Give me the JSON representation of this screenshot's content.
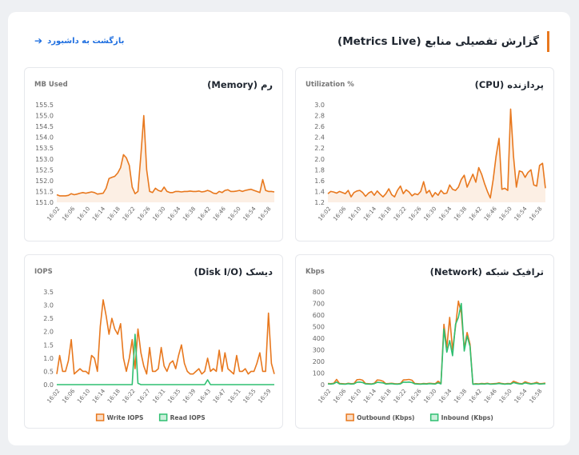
{
  "header": {
    "title": "گزارش تفصیلی منابع (Metrics Live)",
    "back_link": "بازگشت به داشبورد"
  },
  "cards": [
    {
      "id": "cpu",
      "title": "پردازنده (CPU)",
      "unit": "Utilization %",
      "chart_data": {
        "type": "area",
        "title": "پردازنده (CPU)",
        "ylabel": "Utilization %",
        "ylim": [
          1.2,
          3.0
        ],
        "yticks": [
          1.2,
          1.4,
          1.6,
          1.8,
          2.0,
          2.2,
          2.4,
          2.6,
          2.8,
          3.0
        ],
        "ytick_decimals": 1,
        "xticks": [
          "16:02",
          "16:06",
          "16:10",
          "16:14",
          "16:18",
          "16:22",
          "16:26",
          "16:30",
          "16:34",
          "16:38",
          "16:42",
          "16:46",
          "16:50",
          "16:54",
          "16:58"
        ],
        "x_count": 76,
        "fill": true,
        "legend": "none",
        "grid": false,
        "series": [
          {
            "color": "#e8781e",
            "values": [
              1.36,
              1.4,
              1.39,
              1.37,
              1.4,
              1.38,
              1.36,
              1.42,
              1.3,
              1.38,
              1.41,
              1.42,
              1.38,
              1.31,
              1.37,
              1.4,
              1.33,
              1.41,
              1.35,
              1.3,
              1.36,
              1.45,
              1.34,
              1.3,
              1.42,
              1.5,
              1.36,
              1.43,
              1.39,
              1.32,
              1.36,
              1.34,
              1.4,
              1.58,
              1.37,
              1.42,
              1.3,
              1.38,
              1.33,
              1.42,
              1.36,
              1.37,
              1.52,
              1.44,
              1.42,
              1.48,
              1.62,
              1.7,
              1.48,
              1.6,
              1.72,
              1.57,
              1.84,
              1.72,
              1.55,
              1.4,
              1.28,
              1.62,
              2.05,
              2.38,
              1.44,
              1.46,
              1.42,
              2.92,
              2.05,
              1.48,
              1.78,
              1.76,
              1.66,
              1.75,
              1.8,
              1.52,
              1.5,
              1.88,
              1.92,
              1.46
            ]
          }
        ]
      }
    },
    {
      "id": "memory",
      "title": "رم (Memory)",
      "unit": "MB Used",
      "chart_data": {
        "type": "area",
        "title": "رم (Memory)",
        "ylabel": "MB Used",
        "ylim": [
          151.0,
          155.5
        ],
        "yticks": [
          151.0,
          151.5,
          152.0,
          152.5,
          153.0,
          153.5,
          154.0,
          154.5,
          155.0,
          155.5
        ],
        "ytick_decimals": 1,
        "xticks": [
          "16:02",
          "16:06",
          "16:10",
          "16:14",
          "16:18",
          "16:22",
          "16:26",
          "16:30",
          "16:34",
          "16:38",
          "16:42",
          "16:46",
          "16:50",
          "16:54",
          "16:58"
        ],
        "x_count": 76,
        "fill": true,
        "legend": "none",
        "grid": false,
        "series": [
          {
            "color": "#e8781e",
            "values": [
              151.35,
              151.3,
              151.3,
              151.3,
              151.32,
              151.4,
              151.35,
              151.38,
              151.42,
              151.45,
              151.42,
              151.45,
              151.48,
              151.45,
              151.38,
              151.4,
              151.42,
              151.65,
              152.1,
              152.15,
              152.2,
              152.35,
              152.6,
              153.2,
              153.05,
              152.7,
              151.7,
              151.4,
              151.5,
              153.2,
              155.0,
              152.5,
              151.5,
              151.45,
              151.65,
              151.55,
              151.5,
              151.7,
              151.5,
              151.45,
              151.45,
              151.5,
              151.5,
              151.48,
              151.5,
              151.5,
              151.52,
              151.5,
              151.5,
              151.52,
              151.48,
              151.5,
              151.55,
              151.5,
              151.42,
              151.4,
              151.5,
              151.45,
              151.55,
              151.58,
              151.5,
              151.5,
              151.52,
              151.55,
              151.5,
              151.55,
              151.58,
              151.6,
              151.55,
              151.5,
              151.45,
              152.05,
              151.55,
              151.5,
              151.5,
              151.48
            ]
          }
        ]
      }
    },
    {
      "id": "network",
      "title": "ترافیک شبکه (Network)",
      "unit": "Kbps",
      "chart_data": {
        "type": "line",
        "title": "ترافیک شبکه (Network)",
        "ylabel": "Kbps",
        "ylim": [
          0,
          800
        ],
        "yticks": [
          0,
          100,
          200,
          300,
          400,
          500,
          600,
          700,
          800
        ],
        "ytick_decimals": 0,
        "xticks": [
          "16:02",
          "16:06",
          "16:10",
          "16:14",
          "16:18",
          "16:22",
          "16:26",
          "16:30",
          "16:34",
          "16:38",
          "16:42",
          "16:46",
          "16:50",
          "16:54",
          "16:58"
        ],
        "x_count": 76,
        "fill": false,
        "legend": "bottom",
        "grid": false,
        "series": [
          {
            "name": "Outbound (Kbps)",
            "color": "#e8781e",
            "values": [
              10,
              8,
              12,
              45,
              10,
              8,
              6,
              12,
              8,
              10,
              42,
              45,
              38,
              10,
              8,
              6,
              12,
              40,
              38,
              30,
              8,
              10,
              12,
              8,
              6,
              10,
              40,
              42,
              45,
              38,
              10,
              8,
              6,
              10,
              8,
              12,
              10,
              8,
              30,
              10,
              520,
              320,
              580,
              300,
              500,
              720,
              620,
              310,
              450,
              350,
              5,
              8,
              6,
              10,
              8,
              12,
              6,
              8,
              10,
              15,
              10,
              6,
              10,
              8,
              30,
              20,
              10,
              8,
              25,
              15,
              8,
              12,
              20,
              8,
              10,
              14
            ]
          },
          {
            "name": "Inbound (Kbps)",
            "color": "#2fbf71",
            "values": [
              6,
              5,
              8,
              22,
              6,
              5,
              4,
              8,
              5,
              6,
              20,
              22,
              18,
              6,
              5,
              4,
              8,
              20,
              18,
              15,
              5,
              6,
              8,
              5,
              4,
              6,
              22,
              20,
              22,
              18,
              6,
              5,
              4,
              6,
              5,
              8,
              6,
              5,
              15,
              6,
              480,
              280,
              380,
              250,
              520,
              580,
              700,
              290,
              420,
              330,
              3,
              5,
              4,
              6,
              5,
              8,
              4,
              5,
              6,
              10,
              6,
              4,
              6,
              5,
              18,
              12,
              6,
              5,
              15,
              10,
              5,
              8,
              12,
              5,
              6,
              8
            ]
          }
        ]
      }
    },
    {
      "id": "disk",
      "title": "دیسک (Disk I/O)",
      "unit": "IOPS",
      "chart_data": {
        "type": "line",
        "title": "دیسک (Disk I/O)",
        "ylabel": "IOPS",
        "ylim": [
          0,
          3.5
        ],
        "yticks": [
          0,
          0.5,
          1.0,
          1.5,
          2.0,
          2.5,
          3.0,
          3.5
        ],
        "ytick_decimals": 1,
        "xticks": [
          "16:02",
          "16:06",
          "16:10",
          "16:14",
          "16:18",
          "16:22",
          "16:27",
          "16:31",
          "16:35",
          "16:39",
          "16:43",
          "16:47",
          "16:51",
          "16:55",
          "16:59"
        ],
        "x_count": 76,
        "fill": false,
        "legend": "bottom",
        "grid": false,
        "series": [
          {
            "name": "Write IOPS",
            "color": "#e8781e",
            "values": [
              0.4,
              1.1,
              0.5,
              0.5,
              0.9,
              1.7,
              0.4,
              0.5,
              0.6,
              0.5,
              0.5,
              0.4,
              1.1,
              1.0,
              0.5,
              2.2,
              3.2,
              2.6,
              1.9,
              2.5,
              2.1,
              1.9,
              2.3,
              1.0,
              0.5,
              1.0,
              1.7,
              0.6,
              2.1,
              1.2,
              0.7,
              0.4,
              1.4,
              0.5,
              0.5,
              0.6,
              1.4,
              0.7,
              0.5,
              0.8,
              0.9,
              0.6,
              1.1,
              1.5,
              0.8,
              0.5,
              0.4,
              0.4,
              0.5,
              0.6,
              0.4,
              0.5,
              1.0,
              0.5,
              0.6,
              0.5,
              1.3,
              0.5,
              1.2,
              0.6,
              0.5,
              0.4,
              1.1,
              0.5,
              0.5,
              0.6,
              0.4,
              0.5,
              0.5,
              0.8,
              1.2,
              0.5,
              0.5,
              2.7,
              0.8,
              0.4
            ]
          },
          {
            "name": "Read IOPS",
            "color": "#2fbf71",
            "values": [
              0,
              0,
              0,
              0,
              0,
              0,
              0,
              0,
              0,
              0,
              0,
              0,
              0,
              0,
              0,
              0,
              0,
              0,
              0,
              0,
              0,
              0,
              0,
              0,
              0,
              0,
              0,
              1.9,
              0.05,
              0,
              0,
              0,
              0,
              0,
              0,
              0,
              0,
              0,
              0,
              0,
              0,
              0,
              0,
              0,
              0,
              0,
              0,
              0,
              0,
              0,
              0,
              0,
              0.18,
              0,
              0,
              0,
              0,
              0,
              0,
              0,
              0,
              0,
              0,
              0,
              0,
              0,
              0,
              0,
              0,
              0,
              0,
              0,
              0,
              0,
              0,
              0
            ]
          }
        ]
      }
    }
  ]
}
